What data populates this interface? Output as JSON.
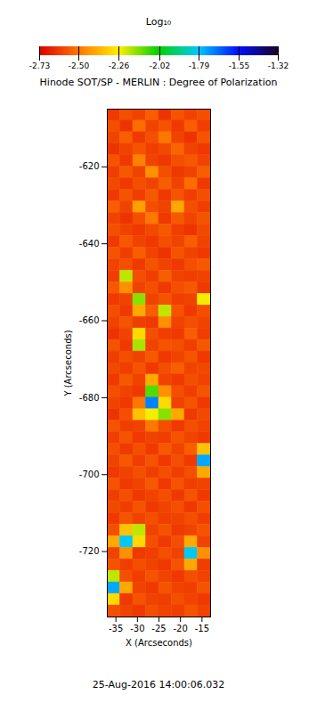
{
  "chart_data": {
    "type": "heatmap",
    "title": "Hinode SOT/SP - MERLIN : Degree of Polarization",
    "caption": "25-Aug-2016 14:00:06.032",
    "x_label": "X (Arcseconds)",
    "y_label": "Y (Arcseconds)",
    "xlim": [
      -37,
      -13
    ],
    "ylim": [
      -737,
      -605
    ],
    "xticks": [
      -35,
      -30,
      -25,
      -20,
      -15
    ],
    "yticks": [
      -620,
      -640,
      -660,
      -680,
      -700,
      -720
    ],
    "x": [
      -35.5,
      -32.5,
      -29.5,
      -26.5,
      -23.5,
      -20.5,
      -17.5,
      -14.5
    ],
    "y": [
      -606.5,
      -609.5,
      -612.5,
      -615.5,
      -618.5,
      -621.5,
      -624.5,
      -627.5,
      -630.5,
      -633.5,
      -636.5,
      -639.5,
      -642.5,
      -645.5,
      -648.5,
      -651.5,
      -654.5,
      -657.5,
      -660.5,
      -663.5,
      -666.5,
      -669.5,
      -672.5,
      -675.5,
      -678.5,
      -681.5,
      -684.5,
      -687.5,
      -690.5,
      -693.5,
      -696.5,
      -699.5,
      -702.5,
      -705.5,
      -708.5,
      -711.5,
      -714.5,
      -717.5,
      -720.5,
      -723.5,
      -726.5,
      -729.5,
      -732.5,
      -735.5
    ],
    "values": [
      [
        -2.62,
        -2.58,
        -2.6,
        -2.55,
        -2.63,
        -2.57,
        -2.6,
        -2.58
      ],
      [
        -2.58,
        -2.63,
        -2.52,
        -2.6,
        -2.57,
        -2.62,
        -2.55,
        -2.61
      ],
      [
        -2.6,
        -2.55,
        -2.62,
        -2.58,
        -2.5,
        -2.6,
        -2.63,
        -2.57
      ],
      [
        -2.63,
        -2.6,
        -2.57,
        -2.61,
        -2.59,
        -2.54,
        -2.6,
        -2.62
      ],
      [
        -2.57,
        -2.62,
        -2.48,
        -2.6,
        -2.62,
        -2.58,
        -2.56,
        -2.6
      ],
      [
        -2.61,
        -2.56,
        -2.6,
        -2.45,
        -2.58,
        -2.62,
        -2.6,
        -2.55
      ],
      [
        -2.59,
        -2.62,
        -2.58,
        -2.6,
        -2.55,
        -2.6,
        -2.52,
        -2.62
      ],
      [
        -2.62,
        -2.57,
        -2.61,
        -2.56,
        -2.62,
        -2.57,
        -2.61,
        -2.58
      ],
      [
        -2.55,
        -2.6,
        -2.42,
        -2.58,
        -2.6,
        -2.4,
        -2.58,
        -2.61
      ],
      [
        -2.6,
        -2.63,
        -2.58,
        -2.5,
        -2.62,
        -2.56,
        -2.6,
        -2.57
      ],
      [
        -2.58,
        -2.6,
        -2.62,
        -2.59,
        -2.56,
        -2.61,
        -2.63,
        -2.59
      ],
      [
        -2.62,
        -2.56,
        -2.6,
        -2.62,
        -2.58,
        -2.6,
        -2.55,
        -2.6
      ],
      [
        -2.57,
        -2.61,
        -2.55,
        -2.6,
        -2.63,
        -2.57,
        -2.6,
        -2.62
      ],
      [
        -2.6,
        -2.58,
        -2.62,
        -2.57,
        -2.6,
        -2.62,
        -2.58,
        -2.56
      ],
      [
        -2.61,
        -2.2,
        -2.58,
        -2.61,
        -2.55,
        -2.6,
        -2.61,
        -2.6
      ],
      [
        -2.56,
        -2.45,
        -2.6,
        -2.58,
        -2.62,
        -2.58,
        -2.56,
        -2.62
      ],
      [
        -2.62,
        -2.6,
        -2.15,
        -2.6,
        -2.57,
        -2.61,
        -2.6,
        -2.25
      ],
      [
        -2.58,
        -2.62,
        -2.4,
        -2.55,
        -2.2,
        -2.57,
        -2.62,
        -2.58
      ],
      [
        -2.6,
        -2.57,
        -2.61,
        -2.62,
        -2.45,
        -2.6,
        -2.58,
        -2.6
      ],
      [
        -2.63,
        -2.6,
        -2.3,
        -2.58,
        -2.61,
        -2.62,
        -2.55,
        -2.61
      ],
      [
        -2.57,
        -2.62,
        -2.18,
        -2.6,
        -2.57,
        -2.58,
        -2.61,
        -2.56
      ],
      [
        -2.61,
        -2.58,
        -2.6,
        -2.56,
        -2.62,
        -2.6,
        -2.57,
        -2.62
      ],
      [
        -2.59,
        -2.61,
        -2.57,
        -2.62,
        -2.58,
        -2.55,
        -2.6,
        -2.59
      ],
      [
        -2.62,
        -2.56,
        -2.6,
        -2.4,
        -2.6,
        -2.62,
        -2.58,
        -2.6
      ],
      [
        -2.58,
        -2.6,
        -2.62,
        -2.1,
        -2.45,
        -2.58,
        -2.61,
        -2.57
      ],
      [
        -2.6,
        -2.62,
        -2.5,
        -1.7,
        -2.3,
        -2.6,
        -2.57,
        -2.62
      ],
      [
        -2.63,
        -2.58,
        -2.35,
        -2.25,
        -2.15,
        -2.4,
        -2.62,
        -2.59
      ],
      [
        -2.57,
        -2.61,
        -2.6,
        -2.5,
        -2.58,
        -2.62,
        -2.58,
        -2.6
      ],
      [
        -2.61,
        -2.57,
        -2.62,
        -2.6,
        -2.61,
        -2.57,
        -2.6,
        -2.62
      ],
      [
        -2.58,
        -2.62,
        -2.58,
        -2.62,
        -2.56,
        -2.6,
        -2.55,
        -2.35
      ],
      [
        -2.6,
        -2.56,
        -2.61,
        -2.57,
        -2.62,
        -2.58,
        -2.62,
        -1.75
      ],
      [
        -2.62,
        -2.6,
        -2.58,
        -2.61,
        -2.58,
        -2.61,
        -2.58,
        -2.4
      ],
      [
        -2.57,
        -2.62,
        -2.6,
        -2.56,
        -2.62,
        -2.57,
        -2.61,
        -2.6
      ],
      [
        -2.61,
        -2.58,
        -2.62,
        -2.6,
        -2.58,
        -2.62,
        -2.57,
        -2.62
      ],
      [
        -2.59,
        -2.61,
        -2.57,
        -2.62,
        -2.6,
        -2.58,
        -2.62,
        -2.58
      ],
      [
        -2.62,
        -2.57,
        -2.6,
        -2.58,
        -2.61,
        -2.6,
        -2.58,
        -2.61
      ],
      [
        -2.58,
        -2.35,
        -2.2,
        -2.6,
        -2.57,
        -2.62,
        -2.6,
        -2.57
      ],
      [
        -2.4,
        -1.8,
        -2.3,
        -2.58,
        -2.62,
        -2.58,
        -2.4,
        -2.6
      ],
      [
        -2.6,
        -2.45,
        -2.62,
        -2.61,
        -2.58,
        -2.6,
        -1.8,
        -2.45
      ],
      [
        -2.57,
        -2.61,
        -2.58,
        -2.6,
        -2.62,
        -2.57,
        -2.4,
        -2.61
      ],
      [
        -2.2,
        -2.58,
        -2.61,
        -2.57,
        -2.6,
        -2.62,
        -2.58,
        -2.6
      ],
      [
        -1.75,
        -2.4,
        -2.6,
        -2.62,
        -2.57,
        -2.6,
        -2.61,
        -2.57
      ],
      [
        -2.3,
        -2.62,
        -2.57,
        -2.6,
        -2.61,
        -2.58,
        -2.6,
        -2.62
      ],
      [
        -2.58,
        -2.6,
        -2.62,
        -2.58,
        -2.6,
        -2.61,
        -2.57,
        -2.6
      ]
    ],
    "colorbar": {
      "label": "Log₁₀",
      "range": [
        -2.73,
        -1.32
      ],
      "ticks": [
        -2.73,
        {
          "value": -2.5,
          "label": "-2.50"
        },
        -2.26,
        -2.02,
        -1.79,
        -1.55,
        -1.32
      ]
    }
  }
}
